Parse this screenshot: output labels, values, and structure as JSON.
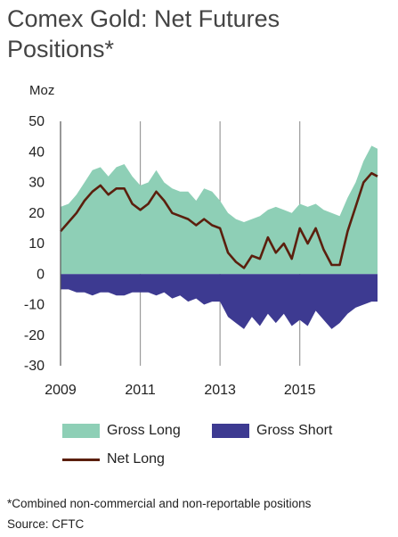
{
  "chart_data": {
    "type": "area",
    "title": "Comex Gold: Net Futures Positions*",
    "ylabel": "Moz",
    "ylim": [
      -30,
      50
    ],
    "yticks": [
      50,
      40,
      30,
      20,
      10,
      0,
      -10,
      -20,
      -30
    ],
    "xlim": [
      2009,
      2016.95
    ],
    "xticks": [
      2009,
      2011,
      2013,
      2015
    ],
    "grid": "vertical lines at x ticks",
    "legend_position": "bottom",
    "x": [
      2009.0,
      2009.2,
      2009.4,
      2009.6,
      2009.8,
      2010.0,
      2010.2,
      2010.4,
      2010.6,
      2010.8,
      2011.0,
      2011.2,
      2011.4,
      2011.6,
      2011.8,
      2012.0,
      2012.2,
      2012.4,
      2012.6,
      2012.8,
      2013.0,
      2013.2,
      2013.4,
      2013.6,
      2013.8,
      2014.0,
      2014.2,
      2014.4,
      2014.6,
      2014.8,
      2015.0,
      2015.2,
      2015.4,
      2015.6,
      2015.8,
      2016.0,
      2016.2,
      2016.4,
      2016.6,
      2016.8,
      2016.95
    ],
    "series": [
      {
        "name": "Gross Long",
        "color": "#8ecfb6",
        "values": [
          22,
          23,
          26,
          30,
          34,
          35,
          32,
          35,
          36,
          32,
          29,
          30,
          34,
          30,
          28,
          27,
          27,
          24,
          28,
          27,
          24,
          20,
          18,
          17,
          18,
          19,
          21,
          22,
          21,
          20,
          23,
          22,
          23,
          21,
          20,
          19,
          25,
          30,
          37,
          42,
          41
        ]
      },
      {
        "name": "Gross Short",
        "color": "#3d3a91",
        "values": [
          -5,
          -5,
          -6,
          -6,
          -7,
          -6,
          -6,
          -7,
          -7,
          -6,
          -6,
          -6,
          -7,
          -6,
          -8,
          -7,
          -9,
          -8,
          -10,
          -9,
          -9,
          -14,
          -16,
          -18,
          -14,
          -17,
          -13,
          -16,
          -13,
          -17,
          -15,
          -17,
          -12,
          -15,
          -18,
          -16,
          -13,
          -11,
          -10,
          -9,
          -9
        ]
      },
      {
        "name": "Net Long",
        "color": "#5b1f0d",
        "values": [
          14,
          17,
          20,
          24,
          27,
          29,
          26,
          28,
          28,
          23,
          21,
          23,
          27,
          24,
          20,
          19,
          18,
          16,
          18,
          16,
          15,
          7,
          4,
          2,
          6,
          5,
          12,
          7,
          10,
          5,
          15,
          10,
          15,
          8,
          3,
          3,
          14,
          22,
          30,
          33,
          32
        ]
      }
    ]
  },
  "legend": {
    "gross_long": "Gross Long",
    "gross_short": "Gross Short",
    "net_long": "Net Long"
  },
  "footnote": "*Combined non-commercial and non-reportable positions",
  "source": "Source: CFTC"
}
